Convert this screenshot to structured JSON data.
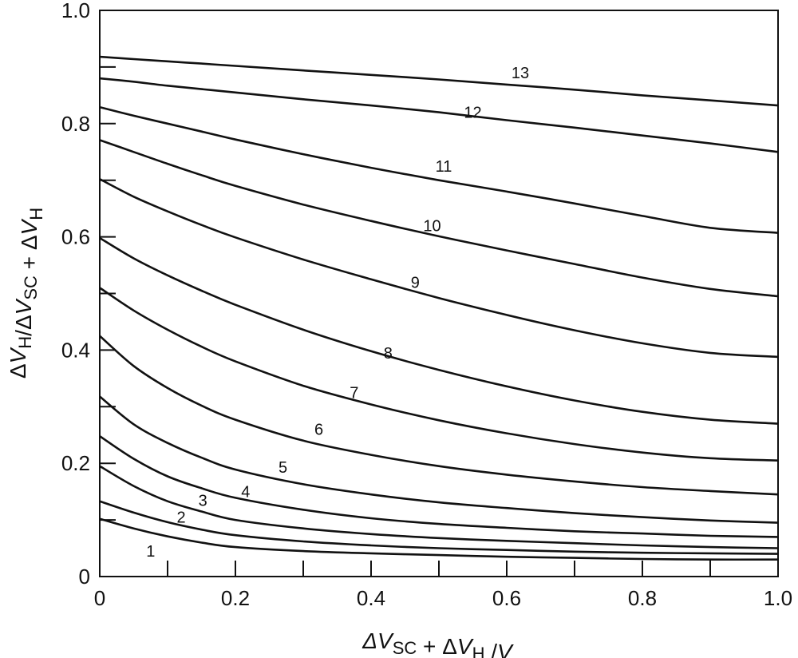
{
  "chart_data": {
    "type": "line",
    "title": "",
    "xlabel": {
      "parts": [
        {
          "t": "ΔV",
          "italic": true,
          "sub": false
        },
        {
          "t": "SC",
          "italic": false,
          "sub": true
        },
        {
          "t": " + Δ",
          "italic": false,
          "sub": false
        },
        {
          "t": "V",
          "italic": true,
          "sub": false
        },
        {
          "t": "H",
          "italic": false,
          "sub": true
        },
        {
          "t": " /",
          "italic": false,
          "sub": false
        },
        {
          "t": "V",
          "italic": true,
          "sub": false
        }
      ]
    },
    "ylabel": {
      "parts": [
        {
          "t": "Δ",
          "italic": false,
          "sub": false
        },
        {
          "t": "V",
          "italic": true,
          "sub": false
        },
        {
          "t": "H",
          "italic": false,
          "sub": true
        },
        {
          "t": "/Δ",
          "italic": false,
          "sub": false
        },
        {
          "t": "V",
          "italic": true,
          "sub": false
        },
        {
          "t": "SC",
          "italic": false,
          "sub": true
        },
        {
          "t": " + Δ",
          "italic": false,
          "sub": false
        },
        {
          "t": "V",
          "italic": true,
          "sub": false
        },
        {
          "t": "H",
          "italic": false,
          "sub": true
        }
      ]
    },
    "xlim": [
      0,
      1.0
    ],
    "ylim": [
      0,
      1.0
    ],
    "xticks": [
      0,
      0.2,
      0.4,
      0.6,
      0.8,
      1.0
    ],
    "xtick_labels": [
      "0",
      "0.2",
      "0.4",
      "0.6",
      "0.8",
      "1.0"
    ],
    "xminor": [
      0.1,
      0.3,
      0.5,
      0.7,
      0.9
    ],
    "yticks": [
      0,
      0.2,
      0.4,
      0.6,
      0.8,
      1.0
    ],
    "ytick_labels": [
      "0",
      "0.2",
      "0.4",
      "0.6",
      "0.8",
      "1.0"
    ],
    "yminor": [
      0.1,
      0.3,
      0.5,
      0.7,
      0.9
    ],
    "grid": false,
    "x": [
      0,
      0.05,
      0.1,
      0.15,
      0.2,
      0.3,
      0.4,
      0.5,
      0.6,
      0.7,
      0.8,
      0.9,
      1.0
    ],
    "series": [
      {
        "name": "1",
        "label_x": 0.075,
        "label_y": 0.045,
        "values": [
          0.102,
          0.085,
          0.071,
          0.06,
          0.052,
          0.045,
          0.041,
          0.038,
          0.035,
          0.033,
          0.031,
          0.03,
          0.03
        ]
      },
      {
        "name": "2",
        "label_x": 0.12,
        "label_y": 0.105,
        "values": [
          0.133,
          0.113,
          0.096,
          0.083,
          0.073,
          0.062,
          0.055,
          0.05,
          0.047,
          0.044,
          0.042,
          0.041,
          0.04
        ]
      },
      {
        "name": "3",
        "label_x": 0.152,
        "label_y": 0.135,
        "values": [
          0.195,
          0.16,
          0.133,
          0.115,
          0.1,
          0.085,
          0.075,
          0.068,
          0.063,
          0.059,
          0.055,
          0.052,
          0.05
        ]
      },
      {
        "name": "4",
        "label_x": 0.215,
        "label_y": 0.15,
        "values": [
          0.248,
          0.208,
          0.177,
          0.156,
          0.139,
          0.118,
          0.103,
          0.093,
          0.086,
          0.08,
          0.076,
          0.072,
          0.07
        ]
      },
      {
        "name": "5",
        "label_x": 0.27,
        "label_y": 0.193,
        "values": [
          0.318,
          0.269,
          0.236,
          0.21,
          0.189,
          0.163,
          0.145,
          0.131,
          0.121,
          0.112,
          0.105,
          0.099,
          0.095
        ]
      },
      {
        "name": "6",
        "label_x": 0.323,
        "label_y": 0.26,
        "values": [
          0.425,
          0.372,
          0.333,
          0.302,
          0.277,
          0.24,
          0.215,
          0.195,
          0.18,
          0.168,
          0.158,
          0.151,
          0.145
        ]
      },
      {
        "name": "7",
        "label_x": 0.375,
        "label_y": 0.325,
        "values": [
          0.51,
          0.47,
          0.436,
          0.406,
          0.38,
          0.337,
          0.304,
          0.276,
          0.253,
          0.234,
          0.219,
          0.209,
          0.205
        ]
      },
      {
        "name": "8",
        "label_x": 0.425,
        "label_y": 0.395,
        "values": [
          0.598,
          0.562,
          0.532,
          0.505,
          0.48,
          0.436,
          0.398,
          0.365,
          0.336,
          0.311,
          0.291,
          0.277,
          0.27
        ]
      },
      {
        "name": "9",
        "label_x": 0.465,
        "label_y": 0.52,
        "values": [
          0.702,
          0.671,
          0.645,
          0.621,
          0.599,
          0.56,
          0.525,
          0.492,
          0.462,
          0.435,
          0.412,
          0.395,
          0.388
        ]
      },
      {
        "name": "10",
        "label_x": 0.49,
        "label_y": 0.62,
        "values": [
          0.771,
          0.75,
          0.729,
          0.709,
          0.69,
          0.657,
          0.628,
          0.601,
          0.576,
          0.552,
          0.528,
          0.508,
          0.495
        ]
      },
      {
        "name": "11",
        "label_x": 0.507,
        "label_y": 0.725,
        "values": [
          0.829,
          0.814,
          0.8,
          0.786,
          0.772,
          0.746,
          0.722,
          0.7,
          0.68,
          0.659,
          0.637,
          0.616,
          0.607
        ]
      },
      {
        "name": "12",
        "label_x": 0.55,
        "label_y": 0.82,
        "values": [
          0.88,
          0.874,
          0.867,
          0.861,
          0.855,
          0.843,
          0.832,
          0.82,
          0.806,
          0.793,
          0.779,
          0.765,
          0.75
        ]
      },
      {
        "name": "13",
        "label_x": 0.62,
        "label_y": 0.89,
        "values": [
          0.918,
          0.914,
          0.91,
          0.906,
          0.902,
          0.894,
          0.886,
          0.878,
          0.869,
          0.86,
          0.85,
          0.841,
          0.832
        ]
      }
    ]
  }
}
